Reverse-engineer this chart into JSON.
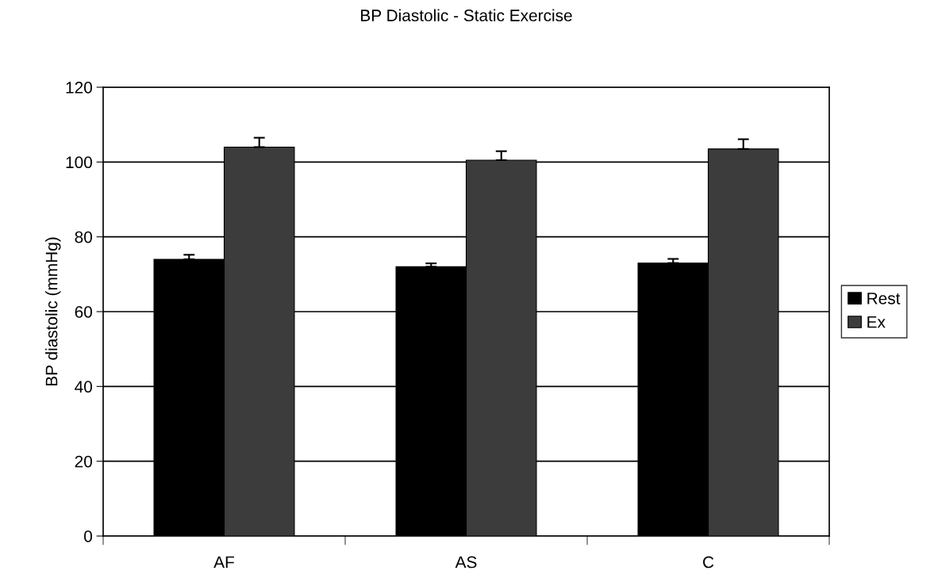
{
  "chart_data": {
    "type": "bar",
    "title": "BP Diastolic - Static Exercise",
    "ylabel": "BP diastolic (mmHg)",
    "categories": [
      "AF",
      "AS",
      "C"
    ],
    "series": [
      {
        "name": "Rest",
        "color": "#000000",
        "values": [
          74,
          72,
          73
        ],
        "errors": [
          1.2,
          0.9,
          1.1
        ]
      },
      {
        "name": "Ex",
        "color": "#3c3c3c",
        "values": [
          104,
          100.5,
          103.5
        ],
        "errors": [
          2.5,
          2.4,
          2.6
        ]
      }
    ],
    "ylim": [
      0,
      120
    ],
    "yticks": [
      0,
      20,
      40,
      60,
      80,
      100,
      120
    ],
    "grid": "y",
    "legend": "right"
  }
}
